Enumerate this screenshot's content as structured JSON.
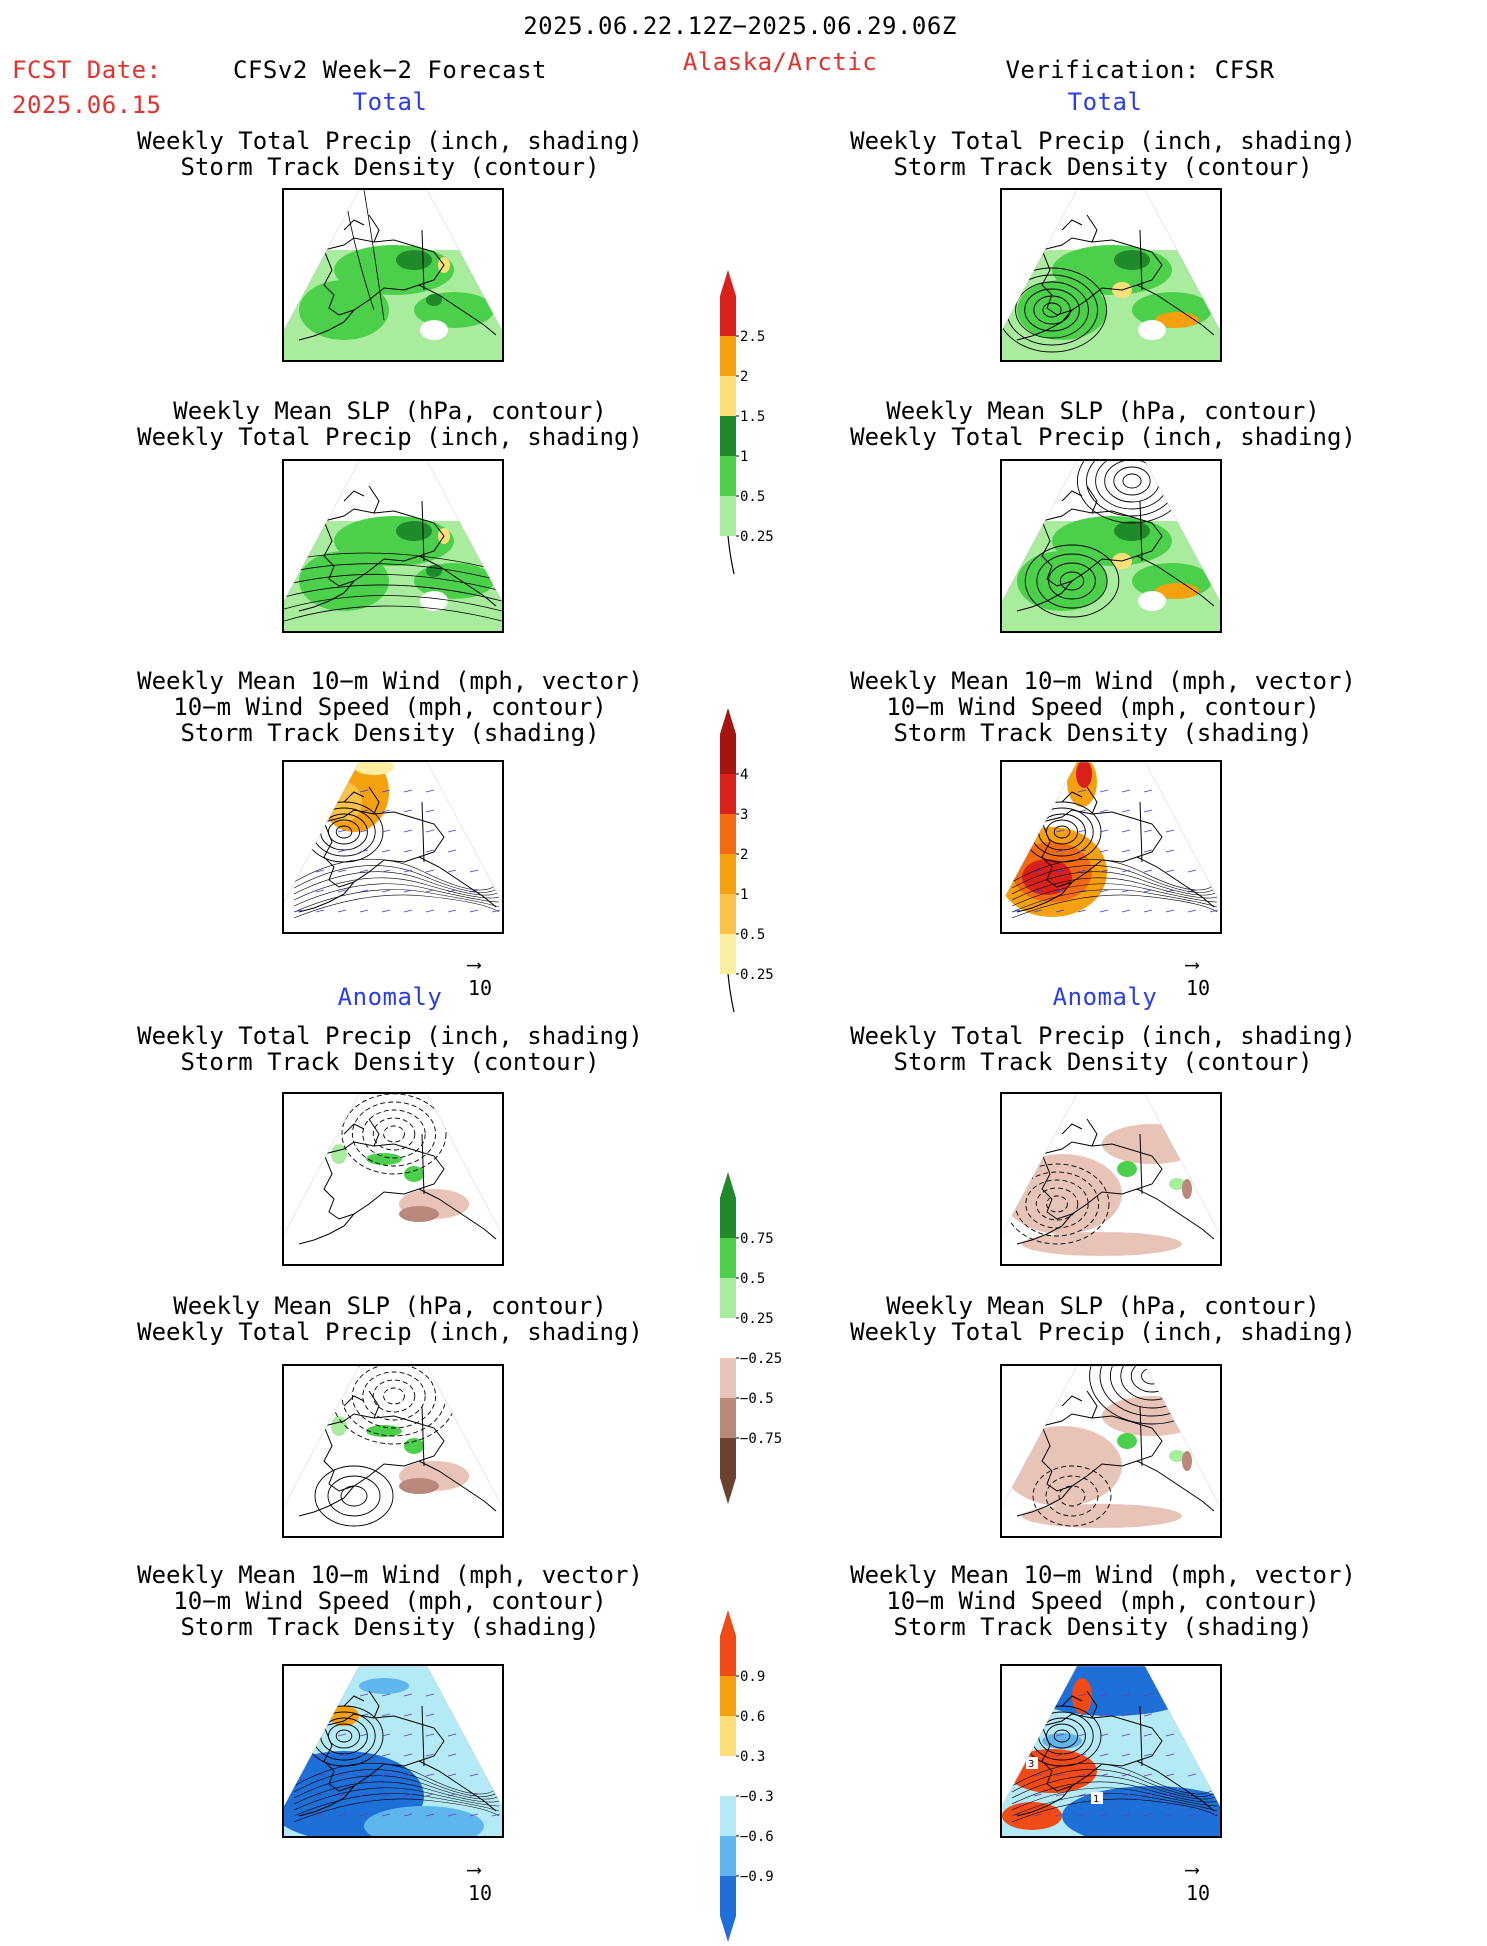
{
  "header": {
    "date_range": "2025.06.22.12Z−2025.06.29.06Z",
    "fcst_label": "FCST Date:",
    "fcst_date": "2025.06.15",
    "left_title": "CFSv2 Week−2 Forecast",
    "region": "Alaska/Arctic",
    "right_title": "Verification: CFSR"
  },
  "sections": {
    "total": "Total",
    "anomaly": "Anomaly"
  },
  "panel_titles": {
    "precip_storm": [
      "Weekly Total Precip (inch, shading)",
      "Storm Track Density (contour)"
    ],
    "slp_precip": [
      "Weekly Mean SLP (hPa, contour)",
      "Weekly Total Precip (inch, shading)"
    ],
    "wind_storm": [
      "Weekly Mean 10−m Wind (mph, vector)",
      "10−m Wind Speed (mph, contour)",
      "Storm Track Density (shading)"
    ]
  },
  "vector_reference": "10",
  "colorbars": {
    "precip_total": {
      "labels": [
        "2.5",
        "2",
        "1.5",
        "1",
        "0.5",
        "0.25"
      ],
      "colors": [
        "#d9201a",
        "#f5a00f",
        "#fbe07a",
        "#1f8a2a",
        "#4cd04c",
        "#a9ec9e"
      ]
    },
    "storm_total": {
      "labels": [
        "4",
        "3",
        "2",
        "1",
        "0.5",
        "0.25"
      ],
      "colors": [
        "#a3150e",
        "#d9201a",
        "#f26b10",
        "#f5a00f",
        "#fbc248",
        "#fcf0a0"
      ]
    },
    "precip_anom": {
      "labels": [
        "0.75",
        "0.5",
        "0.25",
        "−0.25",
        "−0.5",
        "−0.75"
      ],
      "colors": [
        "#1f8a2a",
        "#4cd04c",
        "#a9ec9e",
        "#e8c4b8",
        "#b8897a",
        "#6b4232"
      ]
    },
    "storm_anom": {
      "labels": [
        "0.9",
        "0.6",
        "0.3",
        "−0.3",
        "−0.6",
        "−0.9"
      ],
      "colors": [
        "#f04a16",
        "#f5a00f",
        "#fbe07a",
        "#b4eaf5",
        "#5fb6ee",
        "#1e6fd8"
      ]
    }
  },
  "wind_contour_labels": [
    "3",
    "1"
  ]
}
